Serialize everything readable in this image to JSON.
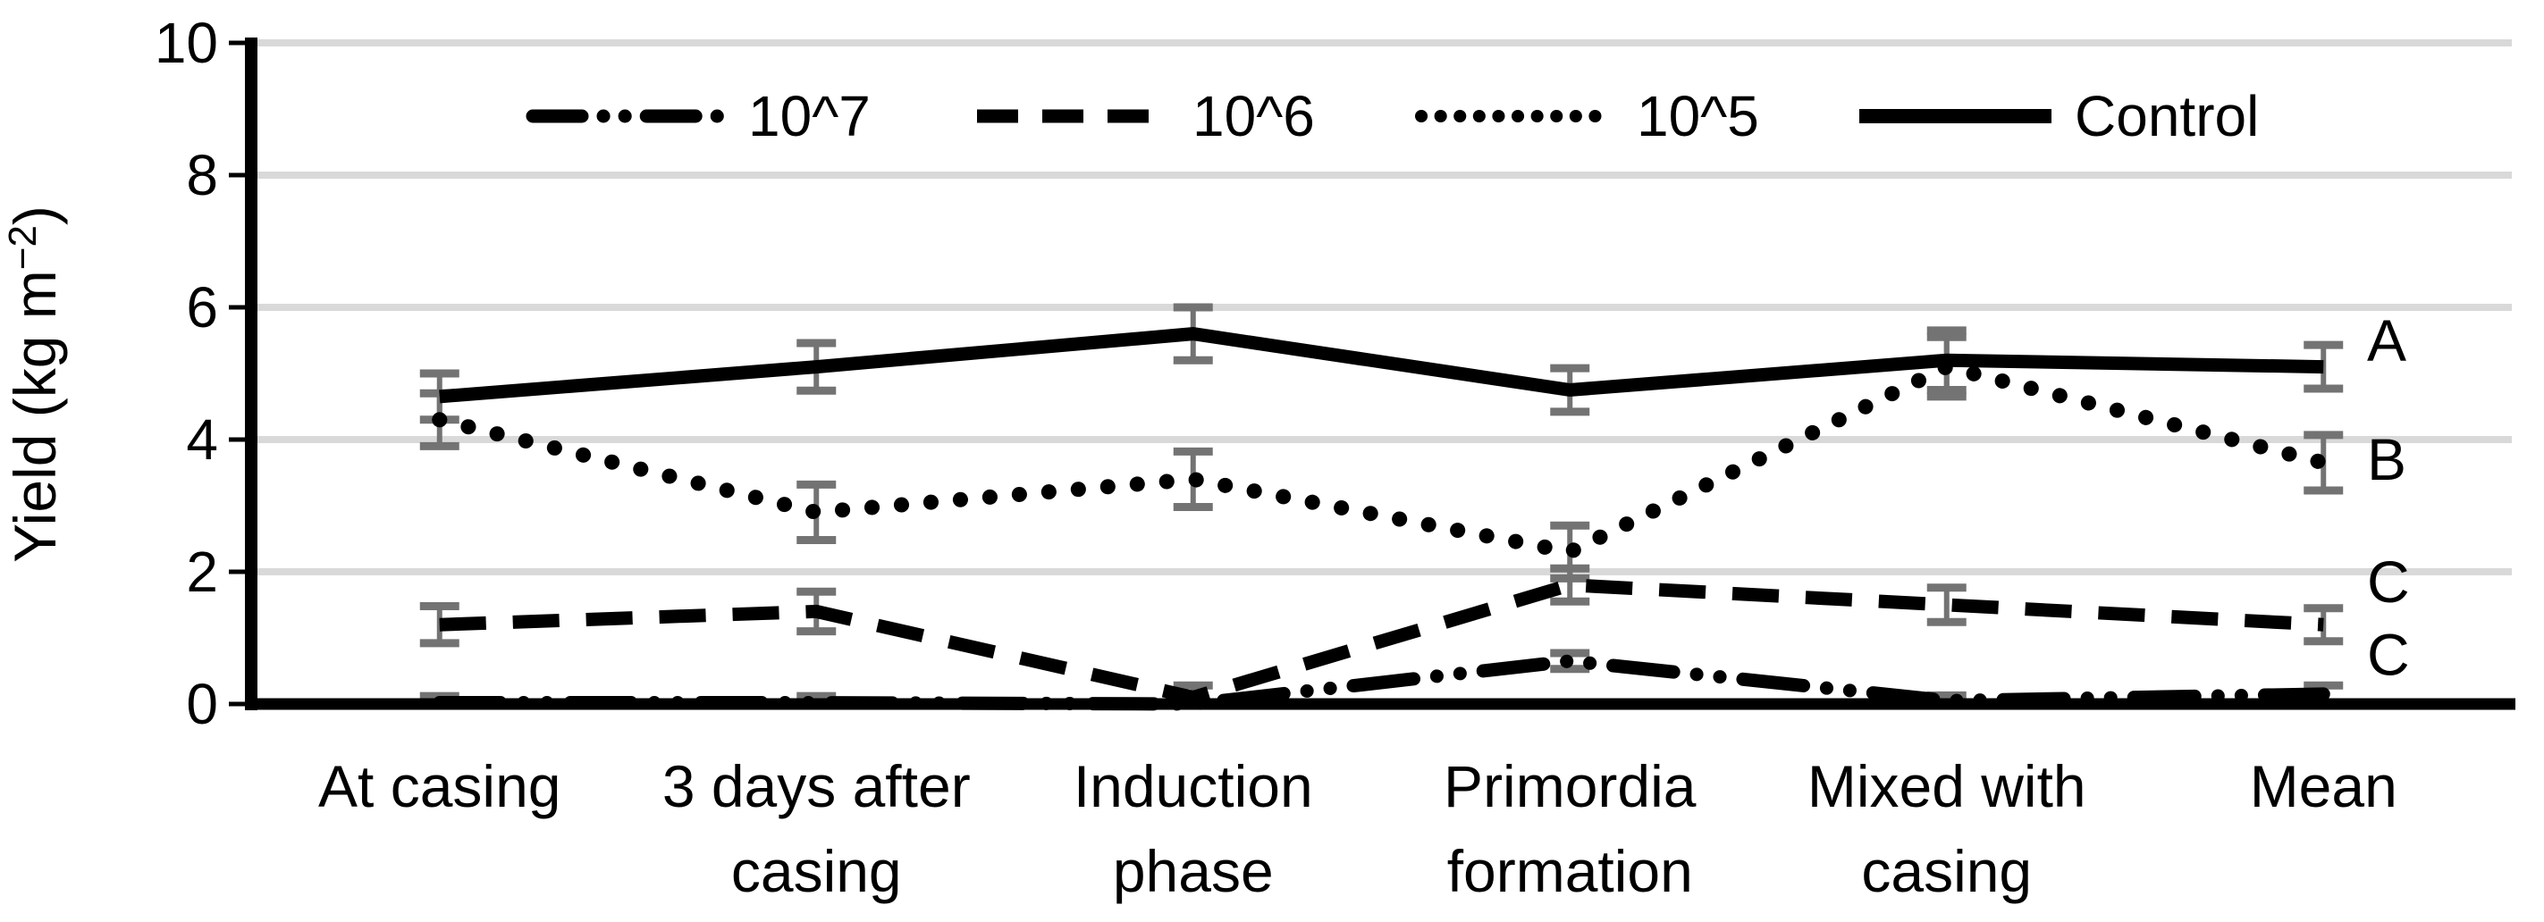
{
  "chart_data": {
    "type": "line",
    "title": "",
    "xlabel": "",
    "ylabel": "Yield (kg m⁻²)",
    "ylabel_parts": {
      "base": "Yield (kg m",
      "superscript": "−2",
      "close": ")"
    },
    "ylim": [
      0,
      10
    ],
    "yticks": [
      0,
      2,
      4,
      6,
      8,
      10
    ],
    "grid": true,
    "legend_position": "top-center-horizontal",
    "categories": [
      [
        "At casing"
      ],
      [
        "3 days after",
        "casing"
      ],
      [
        "Induction",
        "phase"
      ],
      [
        "Primordia",
        "formation"
      ],
      [
        "Mixed with",
        "casing"
      ],
      [
        "Mean"
      ]
    ],
    "series": [
      {
        "name": "10^7",
        "style": "dash-dot-dot",
        "values": [
          0.02,
          0.02,
          0.0,
          0.65,
          0.05,
          0.15
        ],
        "errors": [
          0.1,
          0.1,
          0.0,
          0.12,
          0.08,
          0.13
        ]
      },
      {
        "name": "10^6",
        "style": "dashed",
        "values": [
          1.2,
          1.4,
          0.1,
          1.8,
          1.5,
          1.2
        ],
        "errors": [
          0.28,
          0.3,
          0.18,
          0.25,
          0.26,
          0.25
        ]
      },
      {
        "name": "10^5",
        "style": "dotted",
        "values": [
          4.3,
          2.9,
          3.4,
          2.3,
          5.1,
          3.65
        ],
        "errors": [
          0.4,
          0.42,
          0.42,
          0.4,
          0.45,
          0.42
        ]
      },
      {
        "name": "Control",
        "style": "solid",
        "values": [
          4.65,
          5.1,
          5.6,
          4.75,
          5.2,
          5.1
        ],
        "errors": [
          0.35,
          0.36,
          0.4,
          0.33,
          0.45,
          0.33
        ]
      }
    ],
    "annotations": [
      {
        "label": "A",
        "value": 5.5,
        "attached_series": "Control"
      },
      {
        "label": "B",
        "value": 3.7,
        "attached_series": "10^5"
      },
      {
        "label": "C",
        "value": 1.85,
        "attached_series": "10^6"
      },
      {
        "label": "C",
        "value": 0.75,
        "attached_series": "10^7"
      }
    ],
    "colors": {
      "series_line": "#000000",
      "error_bar": "#737373",
      "gridline": "#d9d9d9",
      "axis": "#000000",
      "background": "#ffffff"
    }
  }
}
